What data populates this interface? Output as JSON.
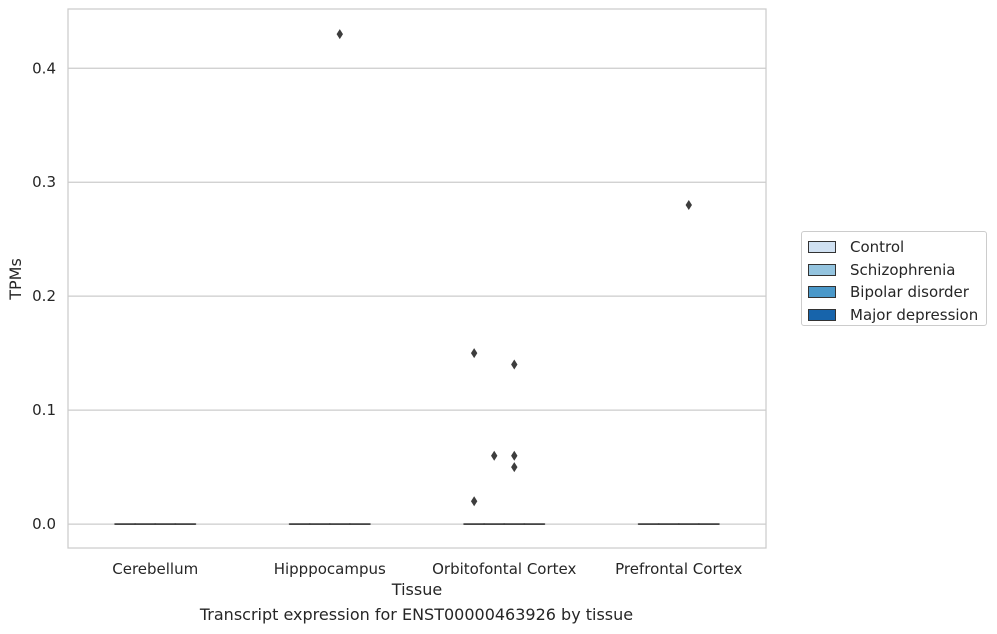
{
  "chart_data": {
    "type": "box",
    "xlabel": "Tissue",
    "ylabel": "TPMs",
    "caption": "Transcript expression for ENST00000463926 by tissue",
    "categories": [
      "Cerebellum",
      "Hipppocampus",
      "Orbitofontal Cortex",
      "Prefrontal Cortex"
    ],
    "ylim": [
      -0.021,
      0.452
    ],
    "yticks": [
      0.0,
      0.1,
      0.2,
      0.3,
      0.4
    ],
    "ytick_labels": [
      "0.0",
      "0.1",
      "0.2",
      "0.3",
      "0.4"
    ],
    "grid": true,
    "legend_position": "right",
    "series": [
      {
        "name": "Control",
        "color": "#d0e1f2",
        "boxes": [
          {
            "q1": 0,
            "median": 0,
            "q3": 0,
            "whislo": 0,
            "whishi": 0
          },
          {
            "q1": 0,
            "median": 0,
            "q3": 0,
            "whislo": 0,
            "whishi": 0
          },
          {
            "q1": 0,
            "median": 0,
            "q3": 0,
            "whislo": 0,
            "whishi": 0
          },
          {
            "q1": 0,
            "median": 0,
            "q3": 0,
            "whislo": 0,
            "whishi": 0
          }
        ],
        "outliers": [
          [],
          [],
          [
            0.02,
            0.15
          ],
          []
        ]
      },
      {
        "name": "Schizophrenia",
        "color": "#94c4df",
        "boxes": [
          {
            "q1": 0,
            "median": 0,
            "q3": 0,
            "whislo": 0,
            "whishi": 0
          },
          {
            "q1": 0,
            "median": 0,
            "q3": 0,
            "whislo": 0,
            "whishi": 0
          },
          {
            "q1": 0,
            "median": 0,
            "q3": 0,
            "whislo": 0,
            "whishi": 0
          },
          {
            "q1": 0,
            "median": 0,
            "q3": 0,
            "whislo": 0,
            "whishi": 0
          }
        ],
        "outliers": [
          [],
          [],
          [
            0.06
          ],
          []
        ]
      },
      {
        "name": "Bipolar disorder",
        "color": "#4a98c9",
        "boxes": [
          {
            "q1": 0,
            "median": 0,
            "q3": 0,
            "whislo": 0,
            "whishi": 0
          },
          {
            "q1": 0,
            "median": 0,
            "q3": 0,
            "whislo": 0,
            "whishi": 0
          },
          {
            "q1": 0,
            "median": 0,
            "q3": 0,
            "whislo": 0,
            "whishi": 0
          },
          {
            "q1": 0,
            "median": 0,
            "q3": 0,
            "whislo": 0,
            "whishi": 0
          }
        ],
        "outliers": [
          [],
          [
            0.43
          ],
          [
            0.14,
            0.06,
            0.05
          ],
          [
            0.28
          ]
        ]
      },
      {
        "name": "Major depression",
        "color": "#1764ab",
        "boxes": [
          {
            "q1": 0,
            "median": 0,
            "q3": 0,
            "whislo": 0,
            "whishi": 0
          },
          {
            "q1": 0,
            "median": 0,
            "q3": 0,
            "whislo": 0,
            "whishi": 0
          },
          {
            "q1": 0,
            "median": 0,
            "q3": 0,
            "whislo": 0,
            "whishi": 0
          },
          {
            "q1": 0,
            "median": 0,
            "q3": 0,
            "whislo": 0,
            "whishi": 0
          }
        ],
        "outliers": [
          [],
          [],
          [],
          []
        ]
      }
    ]
  }
}
